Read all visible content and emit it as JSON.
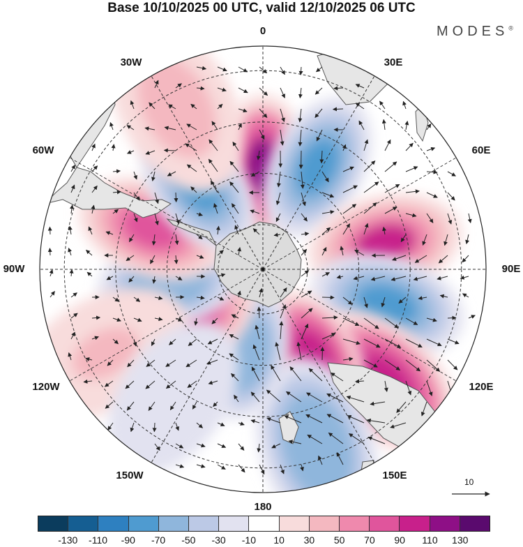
{
  "title": "Base 10/10/2025 00 UTC, valid 12/10/2025 06 UTC",
  "logo": "MODES",
  "logo_mark": "®",
  "longitude_labels": {
    "lon_0": "0",
    "lon_30e": "30E",
    "lon_60e": "60E",
    "lon_90e": "90E",
    "lon_120e": "120E",
    "lon_150e": "150E",
    "lon_180": "180",
    "lon_150w": "150W",
    "lon_120w": "120W",
    "lon_90w": "90W",
    "lon_60w": "60W",
    "lon_30w": "30W"
  },
  "reference_vector": {
    "label": "10"
  },
  "colorbar": {
    "colors": [
      "#0b3c5d",
      "#155e92",
      "#2e80c0",
      "#4f9bd0",
      "#8fb6dc",
      "#bcc9e6",
      "#e2e2f0",
      "#ffffff",
      "#f8dcdc",
      "#f4b8c0",
      "#ef89ad",
      "#e0559c",
      "#c8208b",
      "#8e0f86",
      "#5a0a6e"
    ],
    "labels": [
      "-130",
      "-110",
      "-90",
      "-70",
      "-50",
      "-30",
      "-10",
      "10",
      "30",
      "50",
      "70",
      "90",
      "110",
      "130"
    ]
  },
  "anomalies": [
    {
      "name": "pos-0",
      "lon": 0,
      "r": 0.46,
      "value": 110
    },
    {
      "name": "neg-30e",
      "lon": 28,
      "r": 0.52,
      "value": -90
    },
    {
      "name": "pos-75e",
      "lon": 78,
      "r": 0.56,
      "value": 90
    },
    {
      "name": "neg-105e",
      "lon": 106,
      "r": 0.58,
      "value": -80
    },
    {
      "name": "pos-135e",
      "lon": 133,
      "r": 0.74,
      "value": 100
    },
    {
      "name": "pos-150e",
      "lon": 150,
      "r": 0.45,
      "value": 100
    },
    {
      "name": "neg-160e",
      "lon": 163,
      "r": 0.83,
      "value": -70
    },
    {
      "name": "neg-170w",
      "lon": -168,
      "r": 0.38,
      "value": -70
    },
    {
      "name": "pos-130w",
      "lon": -128,
      "r": 0.38,
      "value": 80
    },
    {
      "name": "neg-100w",
      "lon": -98,
      "r": 0.43,
      "value": -70
    },
    {
      "name": "pos-70w",
      "lon": -70,
      "r": 0.53,
      "value": 70
    },
    {
      "name": "neg-40w",
      "lon": -38,
      "r": 0.47,
      "value": -80
    },
    {
      "name": "pos-30w",
      "lon": -28,
      "r": 0.82,
      "value": 40
    },
    {
      "name": "pos-120w",
      "lon": -118,
      "r": 0.8,
      "value": 30
    },
    {
      "name": "neg-140w",
      "lon": -145,
      "r": 0.7,
      "value": -30
    }
  ]
}
